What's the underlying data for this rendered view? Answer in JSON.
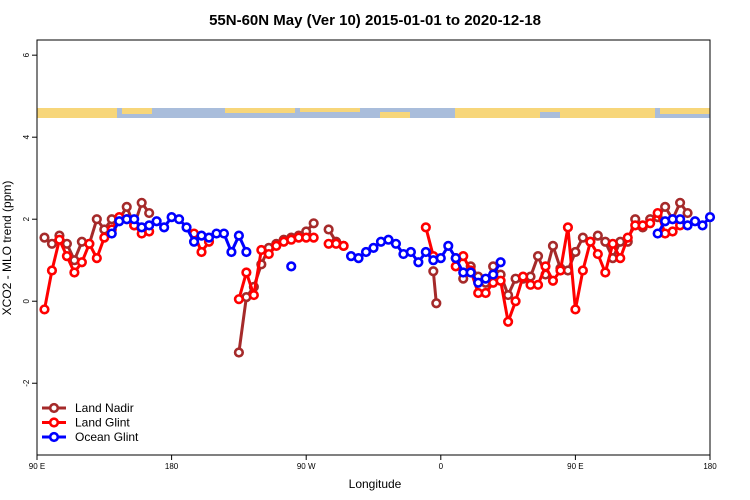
{
  "chart_data": {
    "type": "line",
    "title": "55N-60N May (Ver 10)   2015-01-01 to 2020-12-18",
    "x_label": "Longitude",
    "y_label": "XCO2 - MLO trend (ppm)",
    "xlim": [
      90,
      540
    ],
    "ylim": [
      -3.75,
      6.37
    ],
    "xticks": [
      {
        "value": 90,
        "label": "90 E"
      },
      {
        "value": 180,
        "label": "180"
      },
      {
        "value": 270,
        "label": "90 W"
      },
      {
        "value": 360,
        "label": "0"
      },
      {
        "value": 450,
        "label": "90 E"
      },
      {
        "value": 540,
        "label": "180"
      }
    ],
    "yticks": [
      -2,
      0,
      2,
      4,
      6
    ],
    "legend": "bottom-left",
    "series": [
      {
        "name": "Land Nadir",
        "color": "#a52a2a",
        "x": [
          95,
          100,
          105,
          110,
          115,
          120,
          125,
          130,
          135,
          140,
          145,
          150,
          155,
          160,
          165,
          170,
          225,
          230,
          235,
          240,
          245,
          250,
          255,
          260,
          265,
          270,
          275,
          280,
          285,
          290,
          295,
          300,
          355,
          357,
          362,
          370,
          375,
          380,
          385,
          390,
          395,
          400,
          405,
          410,
          415,
          420,
          425,
          430,
          435,
          440,
          445,
          450,
          455,
          460,
          465,
          470,
          475,
          480,
          485,
          490,
          495,
          500,
          505,
          510,
          515,
          520,
          525
        ],
        "values": [
          1.55,
          1.4,
          1.6,
          1.4,
          1.0,
          1.45,
          1.4,
          2.0,
          1.75,
          2.0,
          2.0,
          2.3,
          1.85,
          2.4,
          2.15,
          null,
          -1.25,
          0.1,
          0.35,
          0.9,
          1.3,
          1.4,
          1.5,
          1.55,
          1.6,
          1.7,
          1.9,
          null,
          1.75,
          1.45,
          1.35,
          null,
          0.73,
          -0.05,
          null,
          1.05,
          0.55,
          0.85,
          0.6,
          0.45,
          0.85,
          0.65,
          0.15,
          0.55,
          0.55,
          0.6,
          1.1,
          0.65,
          1.35,
          0.8,
          0.75,
          1.2,
          1.55,
          1.45,
          1.6,
          1.45,
          1.05,
          1.45,
          1.45,
          2.0,
          1.8,
          2.0,
          2.05,
          2.3,
          2.0,
          2.4,
          2.15
        ]
      },
      {
        "name": "Land Glint",
        "color": "#ff0000",
        "x": [
          95,
          100,
          105,
          110,
          115,
          120,
          125,
          130,
          135,
          140,
          145,
          150,
          155,
          160,
          165,
          170,
          195,
          200,
          205,
          210,
          225,
          230,
          235,
          240,
          245,
          250,
          255,
          260,
          265,
          270,
          275,
          280,
          285,
          290,
          295,
          300,
          350,
          355,
          362,
          370,
          375,
          380,
          385,
          390,
          395,
          400,
          405,
          410,
          415,
          420,
          425,
          430,
          435,
          440,
          445,
          450,
          455,
          460,
          465,
          470,
          475,
          480,
          485,
          490,
          495,
          500,
          505,
          510,
          515,
          520
        ],
        "values": [
          -0.2,
          0.75,
          1.5,
          1.1,
          0.7,
          0.95,
          1.4,
          1.05,
          1.55,
          1.75,
          2.05,
          2.0,
          1.85,
          1.65,
          1.7,
          null,
          1.65,
          1.2,
          1.45,
          null,
          0.05,
          0.7,
          0.15,
          1.25,
          1.15,
          1.35,
          1.45,
          1.5,
          1.55,
          1.55,
          1.55,
          null,
          1.4,
          1.4,
          1.35,
          null,
          1.8,
          1.1,
          null,
          0.85,
          1.1,
          0.75,
          0.2,
          0.2,
          0.45,
          0.5,
          -0.5,
          0.0,
          0.6,
          0.4,
          0.4,
          0.85,
          0.5,
          0.75,
          1.8,
          -0.2,
          0.75,
          1.45,
          1.15,
          0.7,
          1.4,
          1.05,
          1.55,
          1.85,
          1.85,
          1.9,
          2.15,
          1.65,
          1.7,
          1.85
        ]
      },
      {
        "name": "Ocean Glint",
        "color": "#0000ff",
        "x": [
          140,
          145,
          150,
          155,
          160,
          165,
          170,
          175,
          180,
          185,
          190,
          195,
          200,
          205,
          210,
          215,
          220,
          225,
          230,
          245,
          260,
          280,
          300,
          305,
          310,
          315,
          320,
          325,
          330,
          335,
          340,
          345,
          350,
          355,
          360,
          365,
          370,
          375,
          380,
          385,
          390,
          395,
          400,
          450,
          505,
          510,
          515,
          520,
          525,
          530,
          535,
          540
        ],
        "values": [
          1.65,
          1.95,
          2.0,
          2.0,
          1.8,
          1.85,
          1.95,
          1.8,
          2.05,
          2.0,
          1.8,
          1.45,
          1.6,
          1.55,
          1.65,
          1.65,
          1.2,
          1.6,
          1.2,
          null,
          0.85,
          null,
          1.1,
          1.05,
          1.2,
          1.3,
          1.45,
          1.5,
          1.4,
          1.15,
          1.2,
          0.95,
          1.2,
          1.0,
          1.05,
          1.35,
          1.05,
          0.7,
          0.7,
          0.45,
          0.55,
          0.65,
          0.95,
          null,
          1.65,
          1.95,
          2.0,
          2.0,
          1.85,
          1.95,
          1.85,
          2.05
        ]
      }
    ]
  }
}
